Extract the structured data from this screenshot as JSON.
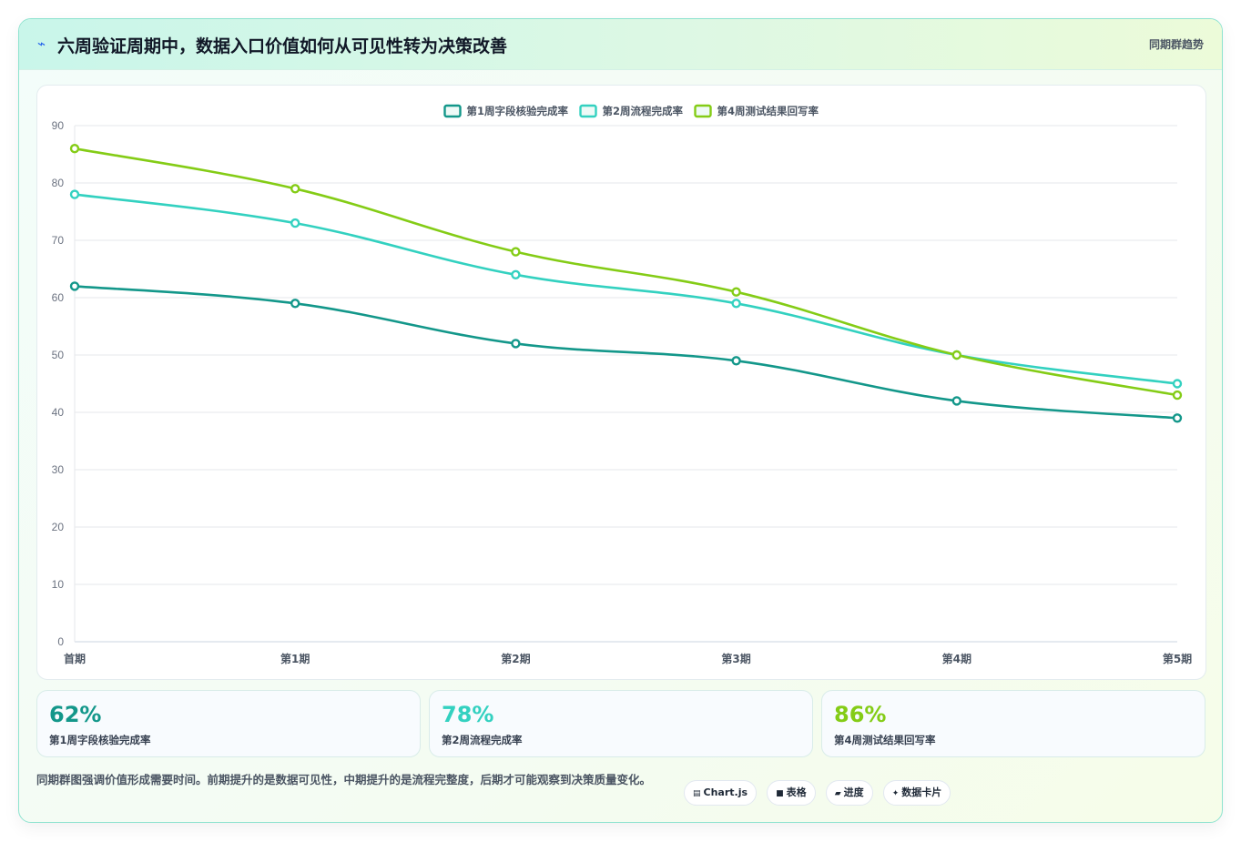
{
  "header": {
    "icon": "lightning-icon",
    "title": "六周验证周期中，数据入口价值如何从可见性转为决策改善",
    "tag": "同期群趋势"
  },
  "chart_data": {
    "type": "line",
    "categories": [
      "首期",
      "第1期",
      "第2期",
      "第3期",
      "第4期",
      "第5期"
    ],
    "series": [
      {
        "name": "第1周字段核验完成率",
        "color": "#13978a",
        "values": [
          62,
          59,
          52,
          49,
          42,
          39
        ]
      },
      {
        "name": "第2周流程完成率",
        "color": "#33d1c0",
        "values": [
          78,
          73,
          64,
          59,
          50,
          45
        ]
      },
      {
        "name": "第4周测试结果回写率",
        "color": "#84cc16",
        "values": [
          86,
          79,
          68,
          61,
          50,
          43
        ]
      }
    ],
    "ylim": [
      0,
      90
    ],
    "yticks": [
      0,
      10,
      20,
      30,
      40,
      50,
      60,
      70,
      80,
      90
    ],
    "grid": true,
    "legend": "top-center"
  },
  "stats": [
    {
      "value": "62%",
      "label": "第1周字段核验完成率",
      "color": "#13978a"
    },
    {
      "value": "78%",
      "label": "第2周流程完成率",
      "color": "#33d1c0"
    },
    {
      "value": "86%",
      "label": "第4周测试结果回写率",
      "color": "#84cc16"
    }
  ],
  "footer": {
    "text": "同期群图强调价值形成需要时间。前期提升的是数据可见性，中期提升的是流程完整度，后期才可能观察到决策质量变化。",
    "chips": [
      {
        "icon": "▤",
        "label": "Chart.js"
      },
      {
        "icon": "■",
        "label": "表格"
      },
      {
        "icon": "▰",
        "label": "进度"
      },
      {
        "icon": "✦",
        "label": "数据卡片"
      }
    ]
  }
}
